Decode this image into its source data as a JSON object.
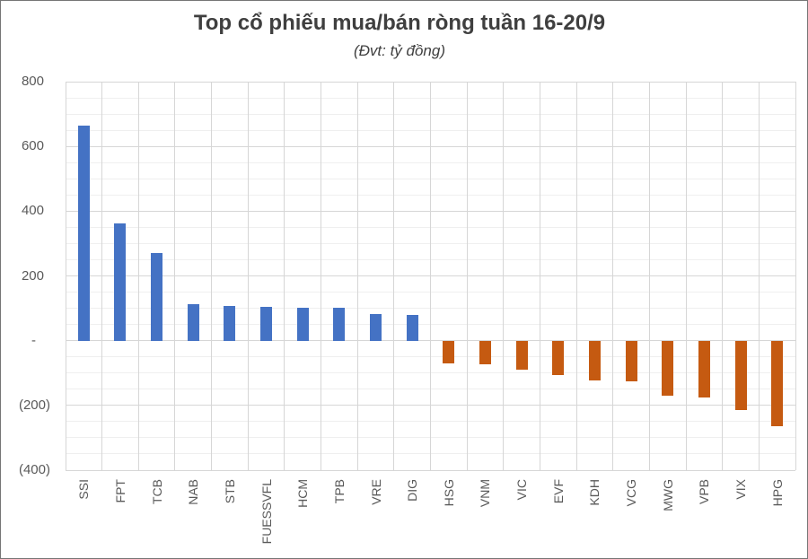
{
  "title": "Top cổ phiếu mua/bán ròng tuần 16-20/9",
  "subtitle": "(Đvt: tỷ đồng)",
  "chart_data": {
    "type": "bar",
    "categories": [
      "SSI",
      "FPT",
      "TCB",
      "NAB",
      "STB",
      "FUESSVFL",
      "HCM",
      "TPB",
      "VRE",
      "DIG",
      "HSG",
      "VNM",
      "VIC",
      "EVF",
      "KDH",
      "VCG",
      "MWG",
      "VPB",
      "VIX",
      "HPG"
    ],
    "values": [
      663,
      361,
      272,
      113,
      107,
      105,
      103,
      101,
      81,
      80,
      -70,
      -74,
      -90,
      -106,
      -124,
      -126,
      -170,
      -176,
      -213,
      -263
    ],
    "title": "Top cổ phiếu mua/bán ròng tuần 16-20/9",
    "subtitle": "(Đvt: tỷ đồng)",
    "xlabel": "",
    "ylabel": "",
    "ylim": [
      -400,
      800
    ],
    "y_major_step": 200,
    "y_minor_step": 50,
    "y_tick_labels": [
      "800",
      "600",
      "400",
      "200",
      "-",
      "(200)",
      "(400)"
    ],
    "grid": true,
    "legend": "none",
    "positive_color": "#4472C4",
    "negative_color": "#C55A11"
  }
}
